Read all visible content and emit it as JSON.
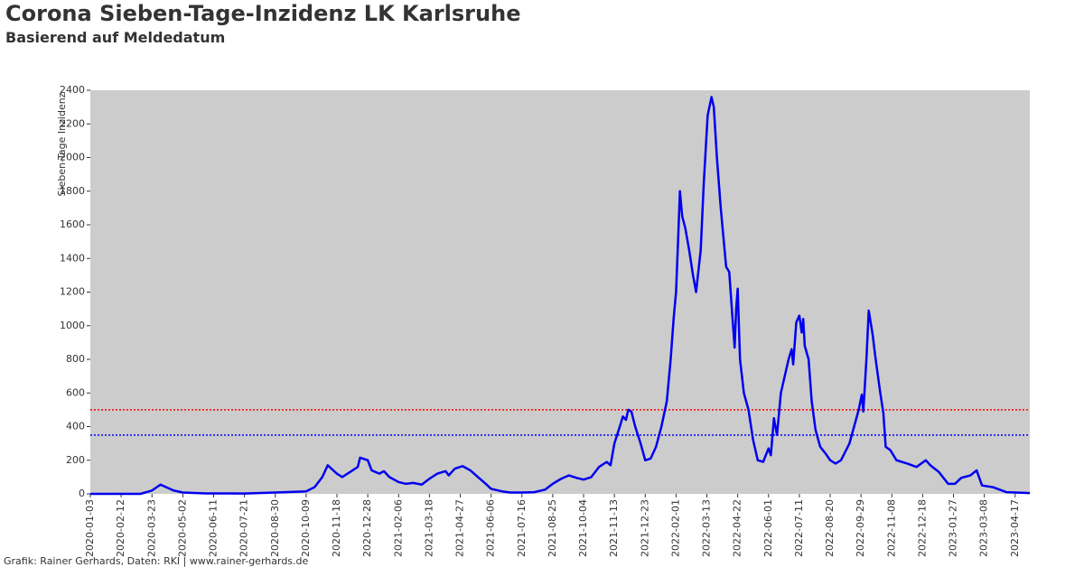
{
  "chart_data": {
    "type": "line",
    "title": "Corona Sieben-Tage-Inzidenz LK Karlsruhe",
    "subtitle": "Basierend auf Meldedatum",
    "y_label": "Sieben-Tage Inzidenz",
    "footer": "Grafik: Rainer Gerhards, Daten: RKI | www.rainer-gerhards.de",
    "xlim": [
      "2020-01-03",
      "2023-05-06"
    ],
    "xticks": [
      "2020-01-03",
      "2020-02-12",
      "2020-03-23",
      "2020-05-02",
      "2020-06-11",
      "2020-07-21",
      "2020-08-30",
      "2020-10-09",
      "2020-11-18",
      "2020-12-28",
      "2021-02-06",
      "2021-03-18",
      "2021-04-27",
      "2021-06-06",
      "2021-07-16",
      "2021-08-25",
      "2021-10-04",
      "2021-11-13",
      "2021-12-23",
      "2022-02-01",
      "2022-03-13",
      "2022-04-22",
      "2022-06-01",
      "2022-07-11",
      "2022-08-20",
      "2022-09-29",
      "2022-11-08",
      "2022-12-18",
      "2023-01-27",
      "2023-03-08",
      "2023-04-17"
    ],
    "ylim": [
      0,
      2400
    ],
    "yticks": [
      0,
      200,
      400,
      600,
      800,
      1000,
      1200,
      1400,
      1600,
      1800,
      2000,
      2200,
      2400
    ],
    "background": "#cccccc",
    "reference_lines": [
      {
        "value": 500,
        "color": "#ff0000"
      },
      {
        "value": 350,
        "color": "#0000ff"
      }
    ],
    "series": [
      {
        "color": "#0000ee",
        "x": [
          "2020-01-03",
          "2020-03-08",
          "2020-03-23",
          "2020-04-03",
          "2020-04-20",
          "2020-05-02",
          "2020-06-01",
          "2020-07-21",
          "2020-08-30",
          "2020-10-09",
          "2020-10-20",
          "2020-10-30",
          "2020-11-06",
          "2020-11-18",
          "2020-11-25",
          "2020-12-05",
          "2020-12-15",
          "2020-12-18",
          "2020-12-28",
          "2021-01-02",
          "2021-01-12",
          "2021-01-18",
          "2021-01-25",
          "2021-02-06",
          "2021-02-15",
          "2021-02-25",
          "2021-03-08",
          "2021-03-18",
          "2021-03-28",
          "2021-04-08",
          "2021-04-12",
          "2021-04-20",
          "2021-04-30",
          "2021-05-10",
          "2021-05-20",
          "2021-05-30",
          "2021-06-06",
          "2021-06-20",
          "2021-07-01",
          "2021-07-16",
          "2021-08-01",
          "2021-08-15",
          "2021-08-25",
          "2021-09-05",
          "2021-09-15",
          "2021-09-25",
          "2021-10-04",
          "2021-10-14",
          "2021-10-24",
          "2021-11-03",
          "2021-11-08",
          "2021-11-13",
          "2021-11-20",
          "2021-11-24",
          "2021-11-28",
          "2021-12-01",
          "2021-12-05",
          "2021-12-10",
          "2021-12-17",
          "2021-12-23",
          "2021-12-30",
          "2022-01-06",
          "2022-01-13",
          "2022-01-20",
          "2022-01-25",
          "2022-01-29",
          "2022-02-01",
          "2022-02-04",
          "2022-02-06",
          "2022-02-09",
          "2022-02-13",
          "2022-02-18",
          "2022-02-23",
          "2022-02-27",
          "2022-03-05",
          "2022-03-09",
          "2022-03-14",
          "2022-03-19",
          "2022-03-22",
          "2022-03-26",
          "2022-03-31",
          "2022-04-03",
          "2022-04-07",
          "2022-04-11",
          "2022-04-15",
          "2022-04-18",
          "2022-04-20",
          "2022-04-22",
          "2022-04-25",
          "2022-04-30",
          "2022-05-06",
          "2022-05-12",
          "2022-05-18",
          "2022-05-25",
          "2022-06-01",
          "2022-06-04",
          "2022-06-08",
          "2022-06-12",
          "2022-06-17",
          "2022-06-22",
          "2022-06-27",
          "2022-07-01",
          "2022-07-03",
          "2022-07-07",
          "2022-07-11",
          "2022-07-14",
          "2022-07-16",
          "2022-07-18",
          "2022-07-23",
          "2022-07-27",
          "2022-08-01",
          "2022-08-07",
          "2022-08-14",
          "2022-08-20",
          "2022-08-27",
          "2022-09-03",
          "2022-09-14",
          "2022-09-26",
          "2022-09-30",
          "2022-10-02",
          "2022-10-06",
          "2022-10-09",
          "2022-10-14",
          "2022-10-18",
          "2022-10-24",
          "2022-10-28",
          "2022-10-31",
          "2022-11-06",
          "2022-11-14",
          "2022-11-28",
          "2022-12-10",
          "2022-12-22",
          "2022-12-28",
          "2023-01-08",
          "2023-01-20",
          "2023-01-29",
          "2023-02-06",
          "2023-02-18",
          "2023-02-26",
          "2023-03-05",
          "2023-03-19",
          "2023-04-06",
          "2023-05-06"
        ],
        "values": [
          0,
          0,
          20,
          55,
          20,
          8,
          3,
          2,
          8,
          15,
          40,
          100,
          170,
          120,
          100,
          130,
          160,
          215,
          200,
          140,
          120,
          135,
          100,
          70,
          60,
          65,
          55,
          90,
          120,
          135,
          110,
          150,
          165,
          140,
          100,
          60,
          30,
          15,
          8,
          8,
          10,
          25,
          60,
          90,
          110,
          95,
          85,
          100,
          160,
          190,
          170,
          300,
          400,
          460,
          440,
          500,
          490,
          400,
          300,
          200,
          210,
          280,
          400,
          550,
          800,
          1050,
          1200,
          1550,
          1800,
          1650,
          1580,
          1450,
          1300,
          1200,
          1450,
          1850,
          2250,
          2360,
          2300,
          2000,
          1700,
          1550,
          1350,
          1320,
          1060,
          870,
          1100,
          1220,
          800,
          600,
          500,
          320,
          200,
          190,
          270,
          230,
          450,
          350,
          600,
          700,
          800,
          860,
          770,
          1020,
          1060,
          960,
          1040,
          880,
          800,
          550,
          380,
          280,
          240,
          200,
          180,
          200,
          300,
          500,
          590,
          490,
          800,
          1090,
          950,
          800,
          600,
          480,
          280,
          260,
          200,
          180,
          160,
          200,
          170,
          130,
          60,
          60,
          95,
          110,
          140,
          50,
          40,
          10,
          5
        ]
      }
    ]
  }
}
